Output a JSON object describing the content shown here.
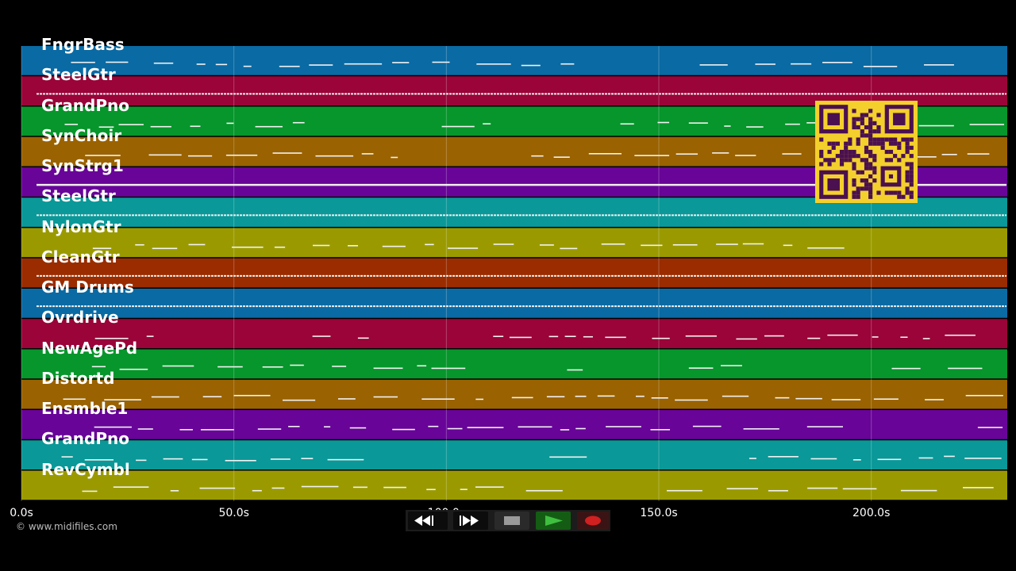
{
  "colors": {
    "background": "#000000",
    "track_palette": [
      "#0a6aa3",
      "#9a0438",
      "#06962b",
      "#9a6200",
      "#680498",
      "#0a9898",
      "#9a9a00",
      "#9a2c00"
    ]
  },
  "tracks": [
    {
      "name": "FngrBass",
      "color": "#0a6aa3"
    },
    {
      "name": "SteelGtr",
      "color": "#9a0438"
    },
    {
      "name": "GrandPno",
      "color": "#06962b"
    },
    {
      "name": "SynChoir",
      "color": "#9a6200"
    },
    {
      "name": "SynStrg1",
      "color": "#680498"
    },
    {
      "name": "SteelGtr",
      "color": "#0a9898"
    },
    {
      "name": "NylonGtr",
      "color": "#9a9a00"
    },
    {
      "name": "CleanGtr",
      "color": "#9a2c00"
    },
    {
      "name": "GM Drums",
      "color": "#0a6aa3"
    },
    {
      "name": "Ovrdrive",
      "color": "#9a0438"
    },
    {
      "name": "NewAgePd",
      "color": "#06962b"
    },
    {
      "name": "Distortd",
      "color": "#9a6200"
    },
    {
      "name": "Ensmble1",
      "color": "#680498"
    },
    {
      "name": "GrandPno",
      "color": "#0a9898"
    },
    {
      "name": "RevCymbl",
      "color": "#9a9a00"
    }
  ],
  "time_axis": {
    "ticks": [
      {
        "value": 0,
        "label": "0.0s"
      },
      {
        "value": 50,
        "label": "50.0s"
      },
      {
        "value": 100,
        "label": "100.0s"
      },
      {
        "value": 150,
        "label": "150.0s"
      },
      {
        "value": 200,
        "label": "200.0s"
      }
    ],
    "range_seconds": [
      0,
      232
    ]
  },
  "copyright": "© www.midifiles.com",
  "transport": {
    "rewind_icon": "rewind-icon",
    "fast_forward_icon": "fast-forward-icon",
    "stop_icon": "stop-icon",
    "play_icon": "play-icon",
    "record_icon": "record-icon"
  },
  "qr_icon": "qr-code-icon"
}
